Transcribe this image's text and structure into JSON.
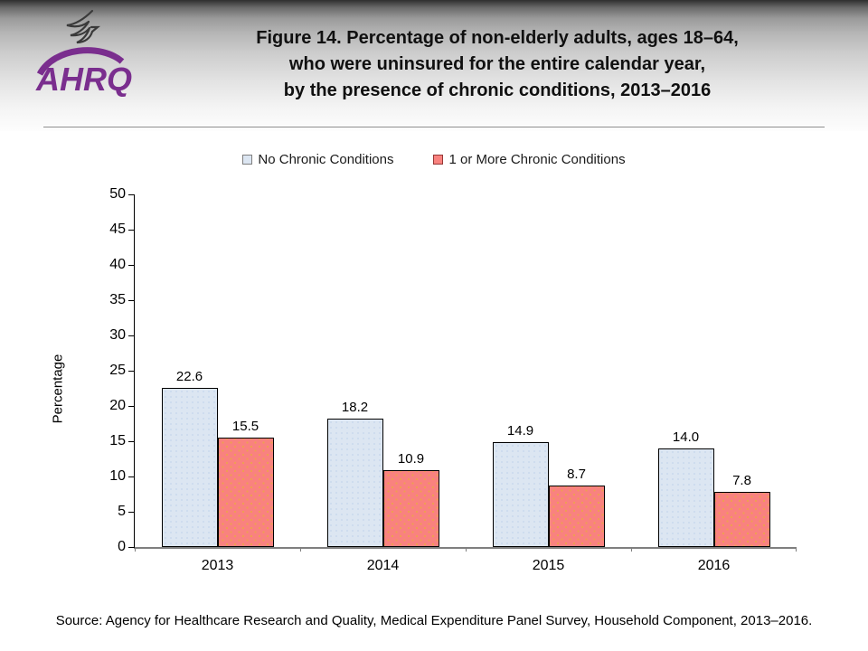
{
  "header": {
    "logo": {
      "icon": "hhs-eagle-icon",
      "wordmark": "AHRQ"
    },
    "title_lines": [
      "Figure 14. Percentage of non-elderly adults, ages 18–64,",
      "who were uninsured for the entire calendar year,",
      "by the presence of chronic conditions, 2013–2016"
    ]
  },
  "legend": {
    "items": [
      {
        "label": "No Chronic Conditions",
        "swatch_color": "#DCE6F2",
        "swatch_border": "#7F7F7F"
      },
      {
        "label": "1 or More Chronic Conditions",
        "swatch_color": "#F9827F",
        "swatch_border": "#953735"
      }
    ]
  },
  "chart_data": {
    "type": "bar",
    "categories": [
      "2013",
      "2014",
      "2015",
      "2016"
    ],
    "series": [
      {
        "name": "No Chronic Conditions",
        "color": "#DCE6F2",
        "border": "#000000",
        "values": [
          22.6,
          18.2,
          14.9,
          14.0
        ]
      },
      {
        "name": "1 or More Chronic Conditions",
        "color": "#F9827F",
        "border": "#000000",
        "values": [
          15.5,
          10.9,
          8.7,
          7.8
        ]
      }
    ],
    "title": "Figure 14. Percentage of non-elderly adults, ages 18–64, who were uninsured for the entire calendar year, by the presence of chronic conditions, 2013–2016",
    "xlabel": "",
    "ylabel": "Percentage",
    "ylim": [
      0,
      50
    ],
    "ytick_step": 5,
    "grid": false,
    "legend_position": "top",
    "value_labels": true,
    "value_format": "0.0"
  },
  "footer": {
    "source": "Source: Agency for Healthcare Research and Quality, Medical Expenditure Panel Survey, Household Component, 2013–2016."
  }
}
